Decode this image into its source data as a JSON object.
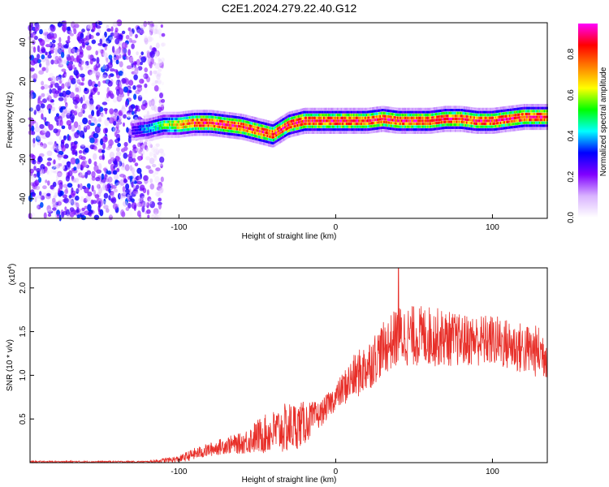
{
  "title": "C2E1.2024.279.22.40.G12",
  "chart_data": [
    {
      "type": "heatmap",
      "xlabel": "Height of straight line (km)",
      "ylabel": "Frequency (Hz)",
      "xlim": [
        -195,
        135
      ],
      "ylim": [
        -50,
        50
      ],
      "xticks": [
        -100,
        0,
        100
      ],
      "yticks": [
        -40,
        -20,
        0,
        20,
        40
      ],
      "grid": false,
      "colorbar": {
        "label": "Normalized spectral amplitude",
        "range": [
          0,
          0.95
        ],
        "ticks": [
          "0.0",
          "0.2",
          "0.4",
          "0.6",
          "0.8"
        ],
        "colors": [
          "#ffffff",
          "#d9b3ff",
          "#8000ff",
          "#0000ff",
          "#00ffff",
          "#00ff00",
          "#ffff00",
          "#ff8000",
          "#ff0000",
          "#ff00ff"
        ]
      },
      "noise_region_x": [
        -195,
        -110
      ],
      "center_line": {
        "x": [
          -130,
          -120,
          -110,
          -100,
          -90,
          -80,
          -70,
          -60,
          -50,
          -40,
          -30,
          -20,
          -10,
          0,
          10,
          20,
          30,
          40,
          50,
          60,
          70,
          80,
          90,
          100,
          110,
          120,
          130
        ],
        "y": [
          -5,
          -4,
          -2,
          -2,
          -1,
          -1,
          -2,
          -3,
          -5,
          -7,
          -2,
          0,
          0,
          0,
          0,
          0,
          1,
          0,
          0,
          0,
          1,
          1,
          0,
          0,
          1,
          2,
          2
        ],
        "peak_amplitude": 0.95
      }
    },
    {
      "type": "line",
      "xlabel": "Height of straight line (km)",
      "ylabel": "SNR (10 * v/v)",
      "multiplier_label": "(x10",
      "multiplier_exponent": "4",
      "xlim": [
        -195,
        135
      ],
      "ylim": [
        0,
        2.23
      ],
      "xticks": [
        -100,
        0,
        100
      ],
      "yticks": [
        "0.5",
        "1.0",
        "1.5",
        "2.0"
      ],
      "ytick_values": [
        0.5,
        1.0,
        1.5,
        2.0
      ],
      "color": "#e8302a",
      "envelope": {
        "x": [
          -195,
          -120,
          -100,
          -90,
          -80,
          -70,
          -60,
          -50,
          -40,
          -30,
          -20,
          -10,
          0,
          10,
          20,
          30,
          40,
          60,
          80,
          100,
          120,
          135
        ],
        "mean": [
          0.01,
          0.01,
          0.04,
          0.1,
          0.15,
          0.2,
          0.22,
          0.3,
          0.35,
          0.4,
          0.45,
          0.55,
          0.75,
          0.95,
          1.1,
          1.3,
          1.45,
          1.45,
          1.4,
          1.4,
          1.3,
          1.25
        ],
        "spread": [
          0.01,
          0.01,
          0.04,
          0.07,
          0.08,
          0.1,
          0.12,
          0.2,
          0.25,
          0.3,
          0.25,
          0.15,
          0.15,
          0.25,
          0.3,
          0.3,
          0.35,
          0.35,
          0.3,
          0.3,
          0.3,
          0.3
        ]
      },
      "max_point": {
        "x": 40,
        "y": 2.23
      }
    }
  ]
}
